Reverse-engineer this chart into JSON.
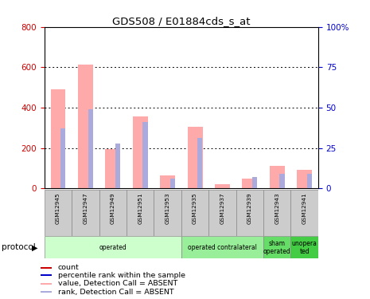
{
  "title": "GDS508 / E01884cds_s_at",
  "samples": [
    "GSM12945",
    "GSM12947",
    "GSM12949",
    "GSM12951",
    "GSM12953",
    "GSM12935",
    "GSM12937",
    "GSM12939",
    "GSM12943",
    "GSM12941"
  ],
  "pink_values": [
    490,
    615,
    195,
    355,
    65,
    305,
    20,
    50,
    110,
    90
  ],
  "blue_rank_pct": [
    37,
    49,
    28,
    41,
    6,
    31,
    0,
    7,
    9,
    9
  ],
  "red_count": [
    2,
    2,
    2,
    2,
    2,
    2,
    2,
    2,
    2,
    2
  ],
  "left_ylim": [
    0,
    800
  ],
  "left_yticks": [
    0,
    200,
    400,
    600,
    800
  ],
  "right_ylim": [
    0,
    100
  ],
  "right_yticks": [
    0,
    25,
    50,
    75,
    100
  ],
  "right_yticklabels": [
    "0",
    "25",
    "50",
    "75",
    "100%"
  ],
  "protocol_groups": [
    {
      "label": "operated",
      "start": 0,
      "end": 5,
      "color": "#ccffcc"
    },
    {
      "label": "operated contralateral",
      "start": 5,
      "end": 8,
      "color": "#99ee99"
    },
    {
      "label": "sham\noperated",
      "start": 8,
      "end": 9,
      "color": "#66dd66"
    },
    {
      "label": "unopera\nted",
      "start": 9,
      "end": 10,
      "color": "#44cc44"
    }
  ],
  "protocol_label": "protocol",
  "pink_bar_width": 0.55,
  "blue_bar_width": 0.18,
  "pink_color": "#ffaaaa",
  "blue_color": "#aaaadd",
  "red_color": "#cc0000",
  "dark_blue_color": "#0000cc",
  "bg_color": "#ffffff",
  "left_tick_color": "#cc0000",
  "right_tick_color": "#0000cc",
  "legend_items": [
    {
      "color": "#cc0000",
      "label": "count"
    },
    {
      "color": "#0000cc",
      "label": "percentile rank within the sample"
    },
    {
      "color": "#ffaaaa",
      "label": "value, Detection Call = ABSENT"
    },
    {
      "color": "#aaaadd",
      "label": "rank, Detection Call = ABSENT"
    }
  ]
}
